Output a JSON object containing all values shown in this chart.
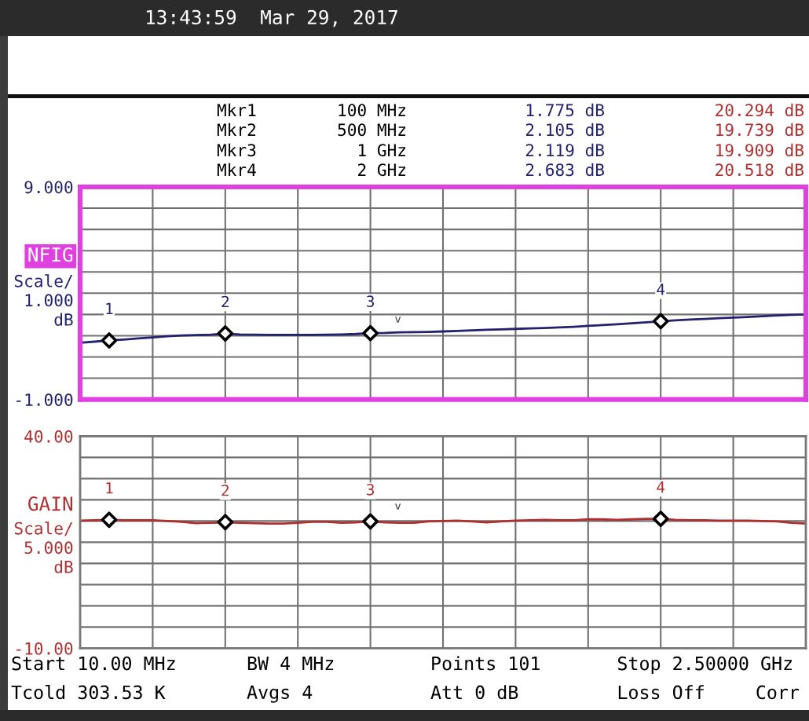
{
  "chart_data": [
    {
      "type": "line",
      "ylabel": "NFIG\nScale/\n1.000\ndB",
      "categories": [
        null,
        null,
        null,
        null,
        null,
        null,
        null,
        null,
        null,
        null,
        null,
        null,
        null,
        null,
        null,
        null,
        null,
        null,
        null,
        null,
        null,
        null,
        null,
        null,
        null,
        null,
        null,
        null,
        null,
        null,
        null,
        null,
        null,
        null,
        null,
        null,
        null,
        null,
        null,
        null,
        null,
        null,
        null,
        null,
        null,
        null,
        null,
        null,
        null,
        null,
        null
      ],
      "ylim": [
        -1,
        9
      ],
      "yticks": [
        {
          "value": -1,
          "label": "-1.000"
        },
        {
          "value": 0,
          "label": null
        },
        {
          "value": 1,
          "label": null
        },
        {
          "value": 2,
          "label": null
        },
        {
          "value": 3,
          "label": null
        },
        {
          "value": 4,
          "label": null
        },
        {
          "value": 5,
          "label": null
        },
        {
          "value": 6,
          "label": null
        },
        {
          "value": 7,
          "label": null
        },
        {
          "value": 8,
          "label": null
        },
        {
          "value": 9,
          "label": "9.000"
        }
      ],
      "grid": true,
      "tick_labels": "y",
      "series": [
        {
          "color": "#22226e",
          "values": [
            1.67,
            1.72,
            1.78,
            1.82,
            1.87,
            1.92,
            1.97,
            2.01,
            2.03,
            2.05,
            2.1,
            2.06,
            2.05,
            2.04,
            2.04,
            2.04,
            2.04,
            2.05,
            2.06,
            2.08,
            2.12,
            2.13,
            2.16,
            2.17,
            2.18,
            2.2,
            2.22,
            2.25,
            2.28,
            2.3,
            2.32,
            2.34,
            2.36,
            2.39,
            2.42,
            2.46,
            2.5,
            2.54,
            2.58,
            2.63,
            2.68,
            2.72,
            2.76,
            2.79,
            2.82,
            2.85,
            2.88,
            2.92,
            2.95,
            2.98,
            3.0
          ]
        },
        {
          "type": "scatter",
          "name": "1",
          "color": "#000000",
          "marker": "diamond",
          "values": [
            null,
            null,
            1.775,
            null,
            null,
            null,
            null,
            null,
            null,
            null,
            null,
            null,
            null,
            null,
            null,
            null,
            null,
            null,
            null,
            null,
            null,
            null,
            null,
            null,
            null,
            null,
            null,
            null,
            null,
            null,
            null,
            null,
            null,
            null,
            null,
            null,
            null,
            null,
            null,
            null,
            null,
            null,
            null,
            null,
            null,
            null,
            null,
            null,
            null,
            null,
            null
          ]
        },
        {
          "type": "scatter",
          "name": "2",
          "color": "#000000",
          "marker": "diamond",
          "values": [
            null,
            null,
            null,
            null,
            null,
            null,
            null,
            null,
            null,
            null,
            2.105,
            null,
            null,
            null,
            null,
            null,
            null,
            null,
            null,
            null,
            null,
            null,
            null,
            null,
            null,
            null,
            null,
            null,
            null,
            null,
            null,
            null,
            null,
            null,
            null,
            null,
            null,
            null,
            null,
            null,
            null,
            null,
            null,
            null,
            null,
            null,
            null,
            null,
            null,
            null,
            null
          ]
        },
        {
          "type": "scatter",
          "name": "3",
          "color": "#000000",
          "marker": "diamond",
          "values": [
            null,
            null,
            null,
            null,
            null,
            null,
            null,
            null,
            null,
            null,
            null,
            null,
            null,
            null,
            null,
            null,
            null,
            null,
            null,
            null,
            2.119,
            null,
            null,
            null,
            null,
            null,
            null,
            null,
            null,
            null,
            null,
            null,
            null,
            null,
            null,
            null,
            null,
            null,
            null,
            null,
            null,
            null,
            null,
            null,
            null,
            null,
            null,
            null,
            null,
            null,
            null
          ]
        },
        {
          "type": "scatter",
          "name": "4",
          "color": "#000000",
          "marker": "diamond",
          "values": [
            null,
            null,
            null,
            null,
            null,
            null,
            null,
            null,
            null,
            null,
            null,
            null,
            null,
            null,
            null,
            null,
            null,
            null,
            null,
            null,
            null,
            null,
            null,
            null,
            null,
            null,
            null,
            null,
            null,
            null,
            null,
            null,
            null,
            null,
            null,
            null,
            null,
            null,
            null,
            null,
            2.683,
            null,
            null,
            null,
            null,
            null,
            null,
            null,
            null,
            null,
            null
          ]
        }
      ],
      "annotations": [
        "13:43:59  Mar 29, 2017",
        "Mkr1",
        "100 MHz",
        "1.775 dB",
        "20.294 dB",
        "Mkr2",
        "500 MHz",
        "2.105 dB",
        "19.739 dB",
        "Mkr3",
        "1 GHz",
        "2.119 dB",
        "19.909 dB",
        "Mkr4",
        "2 GHz",
        "2.683 dB",
        "20.518 dB",
        "v"
      ]
    },
    {
      "type": "line",
      "ylabel": "GAIN\nScale/\n5.000\ndB",
      "categories": [
        null,
        null,
        null,
        null,
        null,
        null,
        null,
        null,
        null,
        null,
        null,
        null,
        null,
        null,
        null,
        null,
        null,
        null,
        null,
        null,
        null,
        null,
        null,
        null,
        null,
        null,
        null,
        null,
        null,
        null,
        null,
        null,
        null,
        null,
        null,
        null,
        null,
        null,
        null,
        null,
        null,
        null,
        null,
        null,
        null,
        null,
        null,
        null,
        null,
        null,
        null
      ],
      "ylim": [
        -10,
        40
      ],
      "yticks": [
        {
          "value": -10,
          "label": "-10.00"
        },
        {
          "value": -5,
          "label": null
        },
        {
          "value": 0,
          "label": null
        },
        {
          "value": 5,
          "label": null
        },
        {
          "value": 10,
          "label": null
        },
        {
          "value": 15,
          "label": null
        },
        {
          "value": 20,
          "label": null
        },
        {
          "value": 25,
          "label": null
        },
        {
          "value": 30,
          "label": null
        },
        {
          "value": 35,
          "label": null
        },
        {
          "value": 40,
          "label": "40.00"
        }
      ],
      "grid": true,
      "tick_labels": "y",
      "series": [
        {
          "color": "#b03030",
          "values": [
            20.1,
            20.2,
            20.3,
            20.2,
            20.2,
            20.2,
            20.0,
            19.8,
            19.5,
            19.6,
            19.7,
            19.6,
            19.5,
            19.4,
            19.4,
            19.6,
            19.8,
            19.8,
            19.6,
            19.7,
            19.9,
            19.7,
            19.6,
            19.6,
            19.9,
            20.0,
            20.1,
            19.9,
            19.7,
            19.9,
            20.1,
            20.2,
            20.3,
            20.2,
            20.2,
            20.4,
            20.4,
            20.3,
            20.4,
            20.5,
            20.5,
            20.3,
            20.2,
            20.2,
            20.1,
            20.1,
            20.1,
            20.0,
            19.9,
            19.6,
            19.4
          ]
        },
        {
          "type": "scatter",
          "name": "1",
          "color": "#000000",
          "marker": "diamond",
          "values": [
            null,
            null,
            20.294,
            null,
            null,
            null,
            null,
            null,
            null,
            null,
            null,
            null,
            null,
            null,
            null,
            null,
            null,
            null,
            null,
            null,
            null,
            null,
            null,
            null,
            null,
            null,
            null,
            null,
            null,
            null,
            null,
            null,
            null,
            null,
            null,
            null,
            null,
            null,
            null,
            null,
            null,
            null,
            null,
            null,
            null,
            null,
            null,
            null,
            null,
            null,
            null
          ]
        },
        {
          "type": "scatter",
          "name": "2",
          "color": "#000000",
          "marker": "diamond",
          "values": [
            null,
            null,
            null,
            null,
            null,
            null,
            null,
            null,
            null,
            null,
            19.739,
            null,
            null,
            null,
            null,
            null,
            null,
            null,
            null,
            null,
            null,
            null,
            null,
            null,
            null,
            null,
            null,
            null,
            null,
            null,
            null,
            null,
            null,
            null,
            null,
            null,
            null,
            null,
            null,
            null,
            null,
            null,
            null,
            null,
            null,
            null,
            null,
            null,
            null,
            null,
            null
          ]
        },
        {
          "type": "scatter",
          "name": "3",
          "color": "#000000",
          "marker": "diamond",
          "values": [
            null,
            null,
            null,
            null,
            null,
            null,
            null,
            null,
            null,
            null,
            null,
            null,
            null,
            null,
            null,
            null,
            null,
            null,
            null,
            null,
            19.909,
            null,
            null,
            null,
            null,
            null,
            null,
            null,
            null,
            null,
            null,
            null,
            null,
            null,
            null,
            null,
            null,
            null,
            null,
            null,
            null,
            null,
            null,
            null,
            null,
            null,
            null,
            null,
            null,
            null,
            null
          ]
        },
        {
          "type": "scatter",
          "name": "4",
          "color": "#000000",
          "marker": "diamond",
          "values": [
            null,
            null,
            null,
            null,
            null,
            null,
            null,
            null,
            null,
            null,
            null,
            null,
            null,
            null,
            null,
            null,
            null,
            null,
            null,
            null,
            null,
            null,
            null,
            null,
            null,
            null,
            null,
            null,
            null,
            null,
            null,
            null,
            null,
            null,
            null,
            null,
            null,
            null,
            null,
            null,
            20.518,
            null,
            null,
            null,
            null,
            null,
            null,
            null,
            null,
            null,
            null
          ]
        }
      ],
      "annotations": [
        "v",
        "Start 10.00 MHz",
        "Tcold 303.53 K",
        "BW 4 MHz",
        "Avgs 4",
        "Points 101",
        "Att 0 dB",
        "Stop 2.50000 GHz",
        "Loss Off",
        "Corr"
      ]
    }
  ]
}
